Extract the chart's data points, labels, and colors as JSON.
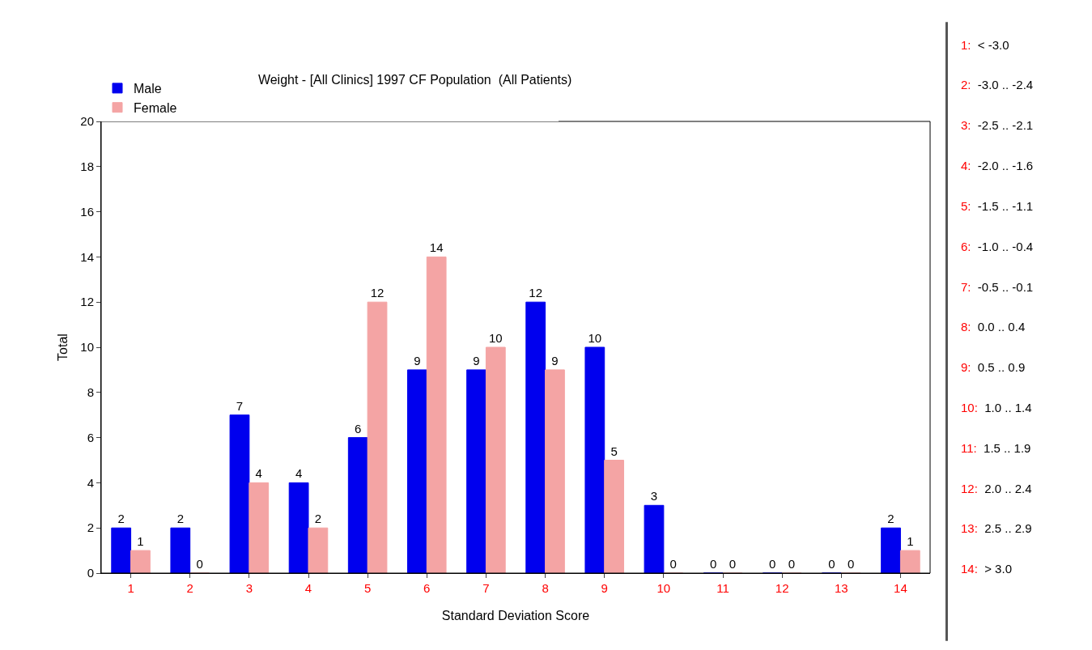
{
  "chart_data": {
    "type": "bar",
    "title": "Weight - [All Clinics] 1997 CF Population  (All Patients)",
    "xlabel": "Standard Deviation Score",
    "ylabel": "Total",
    "categories": [
      "1",
      "2",
      "3",
      "4",
      "5",
      "6",
      "7",
      "8",
      "9",
      "10",
      "11",
      "12",
      "13",
      "14"
    ],
    "series": [
      {
        "name": "Male",
        "color": "#0000ee",
        "values": [
          2,
          2,
          7,
          4,
          6,
          9,
          9,
          12,
          10,
          3,
          0,
          0,
          0,
          2
        ]
      },
      {
        "name": "Female",
        "color": "#f4a4a4",
        "values": [
          1,
          0,
          4,
          2,
          12,
          14,
          10,
          9,
          5,
          0,
          0,
          0,
          0,
          1
        ]
      }
    ],
    "ylim": [
      0,
      20
    ],
    "yticks": [
      0,
      2,
      4,
      6,
      8,
      10,
      12,
      14,
      16,
      18,
      20
    ],
    "grid": false,
    "legend": "top",
    "data_labels": true,
    "annotations": [
      "1:  < -3.0",
      "2:  -3.0 .. -2.4",
      "3:  -2.5 .. -2.1",
      "4:  -2.0 .. -1.6",
      "5:  -1.5 .. -1.1",
      "6:  -1.0 .. -0.4",
      "7:  -0.5 .. -0.1",
      "8:  0.0 .. 0.4",
      "9:  0.5 .. 0.9",
      "10:  1.0 .. 1.4",
      "11:  1.5 .. 1.9",
      "12:  2.0 .. 2.4",
      "13:  2.5 .. 2.9",
      "14:  > 3.0"
    ]
  }
}
